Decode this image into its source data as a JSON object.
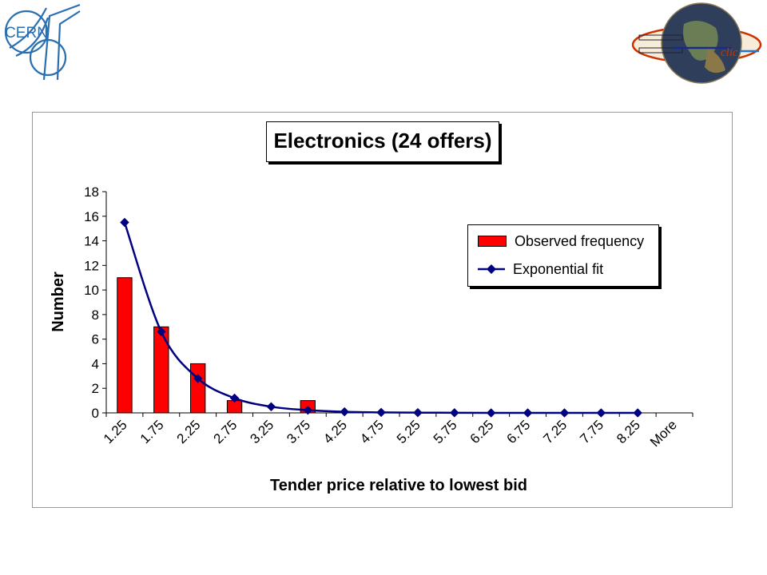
{
  "logos": {
    "cern_text": "CERN",
    "clic_text": "clic"
  },
  "chart_data": {
    "type": "bar",
    "title": "Electronics (24 offers)",
    "xlabel": "Tender price relative to lowest bid",
    "ylabel": "Number",
    "categories": [
      "1.25",
      "1.75",
      "2.25",
      "2.75",
      "3.25",
      "3.75",
      "4.25",
      "4.75",
      "5.25",
      "5.75",
      "6.25",
      "6.75",
      "7.25",
      "7.75",
      "8.25",
      "More"
    ],
    "yticks": [
      "0",
      "2",
      "4",
      "6",
      "8",
      "10",
      "12",
      "14",
      "16",
      "18"
    ],
    "ylim": [
      0,
      18
    ],
    "grid": false,
    "legend_position": "top-right",
    "series": [
      {
        "name": "Observed frequency",
        "type": "bar",
        "color": "#ff0000",
        "values": [
          11,
          7,
          4,
          1,
          0,
          1,
          0,
          0,
          0,
          0,
          0,
          0,
          0,
          0,
          0,
          0
        ]
      },
      {
        "name": "Exponential fit",
        "type": "line",
        "color": "#000080",
        "values": [
          15.5,
          6.6,
          2.8,
          1.2,
          0.5,
          0.22,
          0.09,
          0.04,
          0.02,
          0.01,
          0.0,
          0.0,
          0.0,
          0.0,
          0.0,
          null
        ]
      }
    ]
  }
}
